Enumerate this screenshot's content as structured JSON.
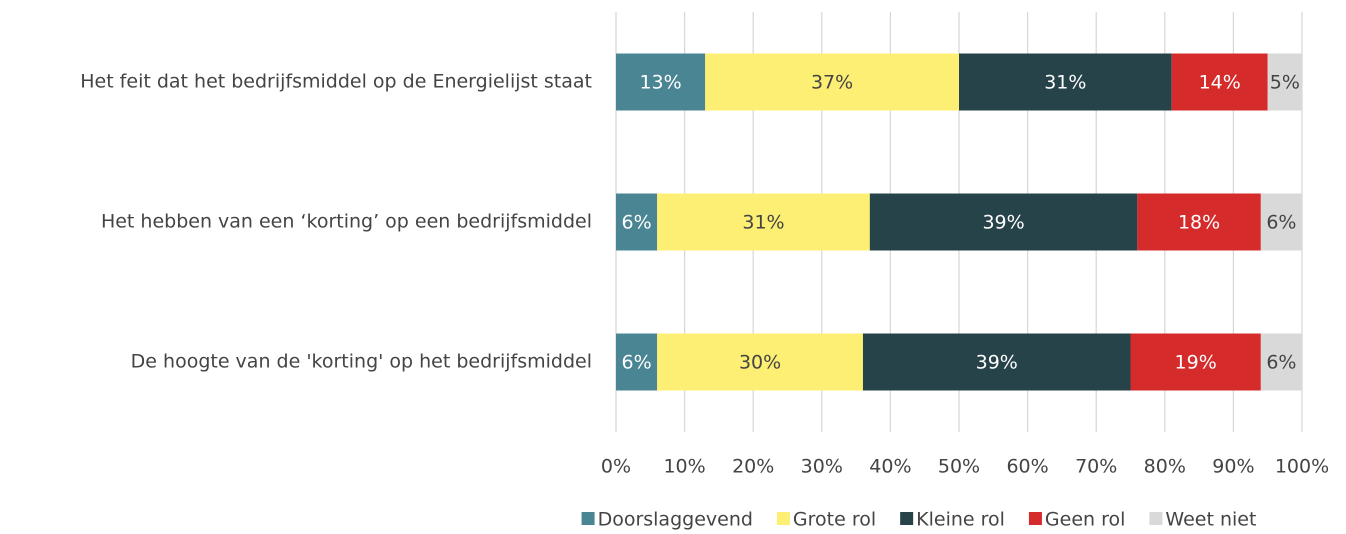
{
  "chart_data": {
    "type": "stacked_barh",
    "categories": [
      "Het feit dat het bedrijfsmiddel op de Energielijst staat",
      "Het hebben van een ‘korting’ op een bedrijfsmiddel",
      "De hoogte van de 'korting' op het bedrijfsmiddel"
    ],
    "series": [
      {
        "name": "Doorslaggevend",
        "color": "#4a8594",
        "values": [
          13,
          6,
          6
        ],
        "value_labels": [
          "13%",
          "6%",
          "6%"
        ]
      },
      {
        "name": "Grote rol",
        "color": "#fcef74",
        "values": [
          37,
          31,
          30
        ],
        "value_labels": [
          "37%",
          "31%",
          "30%"
        ]
      },
      {
        "name": "Kleine rol",
        "color": "#26434a",
        "values": [
          31,
          39,
          39
        ],
        "value_labels": [
          "31%",
          "39%",
          "39%"
        ]
      },
      {
        "name": "Geen rol",
        "color": "#d62b2b",
        "values": [
          14,
          18,
          19
        ],
        "value_labels": [
          "14%",
          "18%",
          "19%"
        ]
      },
      {
        "name": "Weet niet",
        "color": "#d9d9d9",
        "values": [
          5,
          6,
          6
        ],
        "value_labels": [
          "5%",
          "6%",
          "6%"
        ]
      }
    ],
    "xlim": [
      0,
      100
    ],
    "xticks": [
      {
        "value": 0,
        "label": "0%"
      },
      {
        "value": 10,
        "label": "10%"
      },
      {
        "value": 20,
        "label": "20%"
      },
      {
        "value": 30,
        "label": "30%"
      },
      {
        "value": 40,
        "label": "40%"
      },
      {
        "value": 50,
        "label": "50%"
      },
      {
        "value": 60,
        "label": "60%"
      },
      {
        "value": 70,
        "label": "70%"
      },
      {
        "value": 80,
        "label": "80%"
      },
      {
        "value": 90,
        "label": "90%"
      },
      {
        "value": 100,
        "label": "100%"
      }
    ],
    "grid": true,
    "legend": "bottom"
  }
}
